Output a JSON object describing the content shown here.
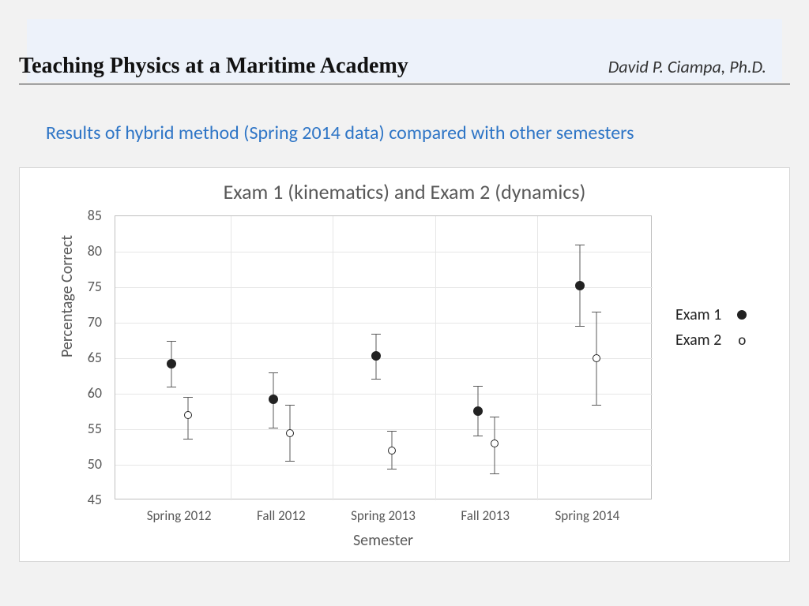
{
  "header": {
    "title": "Teaching Physics at a Maritime Academy",
    "author": "David P. Ciampa, Ph.D."
  },
  "subtitle": "Results of hybrid method (Spring 2014 data) compared with other semesters",
  "chart": {
    "type": "scatter-errorbar",
    "title": "Exam 1 (kinematics) and Exam 2 (dynamics)",
    "ylabel": "Percentage Correct",
    "xlabel": "Semester",
    "background_color": "#ffffff",
    "frame_border_color": "#d6d6d6",
    "plot_border_color": "#bfbfbf",
    "grid_color": "#e6e6e6",
    "text_color": "#595959",
    "title_fontsize": 26,
    "label_fontsize": 20,
    "tick_fontsize": 18,
    "ylim": [
      45,
      85
    ],
    "ytick_step": 5,
    "yticks": [
      45,
      50,
      55,
      60,
      65,
      70,
      75,
      80,
      85
    ],
    "categories": [
      "Spring 2012",
      "Fall 2012",
      "Spring 2013",
      "Fall 2013",
      "Spring 2014"
    ],
    "series": [
      {
        "name": "Exam 1",
        "marker": "filled-circle",
        "marker_color": "#222222",
        "marker_size": 12,
        "error_color": "#595959",
        "x_offset": -0.08,
        "points": [
          {
            "y": 64.2,
            "err_low": 3.2,
            "err_high": 3.2
          },
          {
            "y": 59.2,
            "err_low": 4.0,
            "err_high": 3.8
          },
          {
            "y": 65.3,
            "err_low": 3.2,
            "err_high": 3.2
          },
          {
            "y": 57.6,
            "err_low": 3.5,
            "err_high": 3.5
          },
          {
            "y": 75.2,
            "err_low": 5.6,
            "err_high": 5.8
          }
        ]
      },
      {
        "name": "Exam 2",
        "marker": "open-circle",
        "marker_color": "#222222",
        "marker_size": 10,
        "error_color": "#595959",
        "x_offset": 0.08,
        "points": [
          {
            "y": 57.0,
            "err_low": 3.3,
            "err_high": 2.6
          },
          {
            "y": 54.5,
            "err_low": 3.9,
            "err_high": 3.9
          },
          {
            "y": 52.0,
            "err_low": 2.6,
            "err_high": 2.8
          },
          {
            "y": 53.0,
            "err_low": 4.2,
            "err_high": 3.8
          },
          {
            "y": 65.0,
            "err_low": 6.6,
            "err_high": 6.6
          }
        ]
      }
    ],
    "legend": {
      "items": [
        {
          "label": "Exam 1",
          "marker": "filled-circle"
        },
        {
          "label": "Exam 2",
          "marker": "open-circle"
        }
      ]
    }
  },
  "colors": {
    "page_bg": "#f2f2f2",
    "header_band": "#edf2fa",
    "subtitle": "#2e75c6",
    "rule": "#333333"
  }
}
